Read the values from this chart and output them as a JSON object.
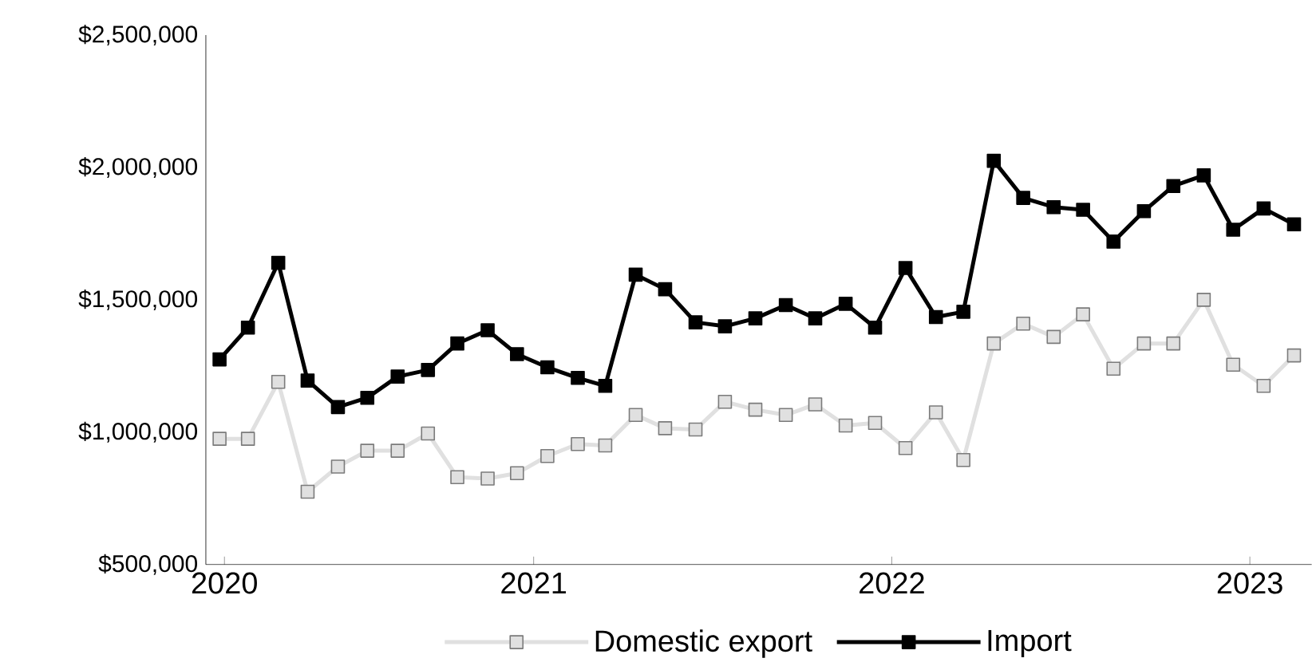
{
  "chart_data": {
    "type": "line",
    "x": [
      "2020-02-15",
      "2020-03-15",
      "2020-04-15",
      "2020-05-15",
      "2020-06-15",
      "2020-07-15",
      "2020-08-15",
      "2020-09-15",
      "2020-10-15",
      "2020-11-15",
      "2020-12-15",
      "2021-01-15",
      "2021-02-15",
      "2021-03-15",
      "2021-04-15",
      "2021-05-15",
      "2021-06-15",
      "2021-07-15",
      "2021-08-15",
      "2021-09-15",
      "2021-10-15",
      "2021-11-15",
      "2021-12-15",
      "2022-01-15",
      "2022-02-15",
      "2022-03-15",
      "2022-04-15",
      "2022-05-15",
      "2022-06-15",
      "2022-07-15",
      "2022-08-15",
      "2022-09-15",
      "2022-10-15",
      "2022-11-15",
      "2022-12-15",
      "2023-01-15",
      "2023-02-15"
    ],
    "series": [
      {
        "name": "Domestic export",
        "color": "#e0e0e0",
        "values": [
          975000,
          975000,
          1190000,
          775000,
          870000,
          930000,
          930000,
          995000,
          830000,
          825000,
          845000,
          910000,
          955000,
          950000,
          1065000,
          1015000,
          1010000,
          1115000,
          1085000,
          1065000,
          1105000,
          1025000,
          1035000,
          940000,
          1075000,
          895000,
          1335000,
          1410000,
          1360000,
          1445000,
          1240000,
          1335000,
          1335000,
          1500000,
          1255000,
          1175000,
          1290000
        ]
      },
      {
        "name": "Import",
        "color": "#000000",
        "values": [
          1275000,
          1395000,
          1640000,
          1195000,
          1095000,
          1130000,
          1210000,
          1235000,
          1335000,
          1385000,
          1295000,
          1245000,
          1205000,
          1175000,
          1595000,
          1540000,
          1415000,
          1400000,
          1430000,
          1480000,
          1430000,
          1485000,
          1395000,
          1620000,
          1435000,
          1455000,
          2025000,
          1885000,
          1850000,
          1840000,
          1720000,
          1835000,
          1930000,
          1970000,
          1765000,
          1845000,
          1785000
        ]
      }
    ],
    "xlim": [
      "2020-02-01",
      "2023-03-05"
    ],
    "xticks": [
      {
        "value": "2020-02-20",
        "label": "2020"
      },
      {
        "value": "2021-01-01",
        "label": "2021"
      },
      {
        "value": "2022-01-01",
        "label": "2022"
      },
      {
        "value": "2023-01-01",
        "label": "2023"
      }
    ],
    "ylim": [
      500000,
      2500000
    ],
    "yticks": [
      {
        "value": 500000,
        "label": "$500,000"
      },
      {
        "value": 1000000,
        "label": "$1,000,000"
      },
      {
        "value": 1500000,
        "label": "$1,500,000"
      },
      {
        "value": 2000000,
        "label": "$2,000,000"
      },
      {
        "value": 2500000,
        "label": "$2,500,000"
      }
    ],
    "grid": false,
    "legend": "bottom",
    "marker": "square",
    "line_style": "solid"
  }
}
